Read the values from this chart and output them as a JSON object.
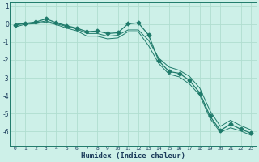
{
  "xlabel": "Humidex (Indice chaleur)",
  "bg_color": "#cdf0e8",
  "grid_color": "#b0ddd0",
  "line_color": "#1e7a6a",
  "xlim": [
    -0.5,
    23.5
  ],
  "ylim": [
    -6.8,
    1.2
  ],
  "yticks": [
    1,
    0,
    -1,
    -2,
    -3,
    -4,
    -5,
    -6
  ],
  "xticks": [
    0,
    1,
    2,
    3,
    4,
    5,
    6,
    7,
    8,
    9,
    10,
    11,
    12,
    13,
    14,
    15,
    16,
    17,
    18,
    19,
    20,
    21,
    22,
    23
  ],
  "main_x": [
    0,
    1,
    2,
    3,
    4,
    5,
    6,
    7,
    8,
    9,
    10,
    11,
    12,
    13,
    14,
    15,
    16,
    17,
    18,
    19,
    20,
    21,
    22,
    23
  ],
  "main_y": [
    -0.05,
    0.05,
    0.12,
    0.3,
    0.08,
    -0.08,
    -0.22,
    -0.42,
    -0.38,
    -0.52,
    -0.48,
    0.02,
    0.08,
    -0.6,
    -2.05,
    -2.65,
    -2.75,
    -3.15,
    -3.85,
    -5.15,
    -5.95,
    -5.6,
    -5.88,
    -6.1
  ],
  "upper_x": [
    0,
    1,
    2,
    3,
    4,
    5,
    6,
    7,
    8,
    9,
    10,
    11,
    12,
    13,
    14,
    15,
    16,
    17,
    18,
    19,
    20,
    21,
    22,
    23
  ],
  "upper_y": [
    0.0,
    0.05,
    0.08,
    0.18,
    0.02,
    -0.12,
    -0.27,
    -0.52,
    -0.52,
    -0.67,
    -0.62,
    -0.32,
    -0.32,
    -0.9,
    -1.9,
    -2.4,
    -2.58,
    -2.92,
    -3.58,
    -4.85,
    -5.72,
    -5.38,
    -5.68,
    -5.92
  ],
  "lower_x": [
    0,
    1,
    2,
    3,
    4,
    5,
    6,
    7,
    8,
    9,
    10,
    11,
    12,
    13,
    14,
    15,
    16,
    17,
    18,
    19,
    20,
    21,
    22,
    23
  ],
  "lower_y": [
    -0.15,
    0.0,
    0.03,
    0.12,
    -0.02,
    -0.22,
    -0.37,
    -0.67,
    -0.67,
    -0.82,
    -0.77,
    -0.42,
    -0.42,
    -1.2,
    -2.2,
    -2.8,
    -2.95,
    -3.35,
    -3.98,
    -5.28,
    -6.05,
    -5.8,
    -5.98,
    -6.22
  ]
}
